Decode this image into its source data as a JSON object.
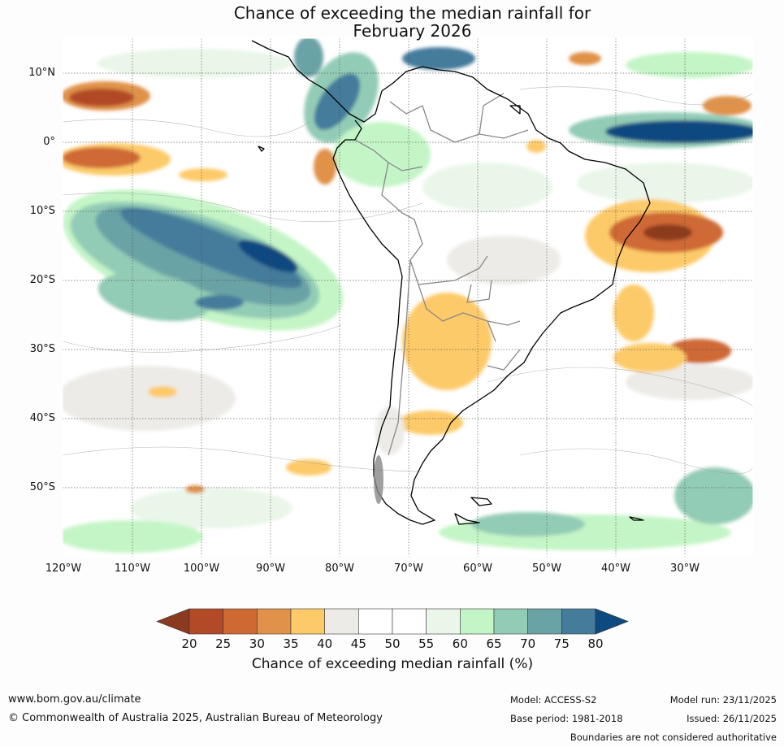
{
  "title": {
    "line1": "Chance of exceeding the median rainfall for",
    "line2": "February 2026"
  },
  "map": {
    "lat_labels": [
      "10°N",
      "0°",
      "10°S",
      "20°S",
      "30°S",
      "40°S",
      "50°S"
    ],
    "lon_labels": [
      "120°W",
      "110°W",
      "100°W",
      "90°W",
      "80°W",
      "70°W",
      "60°W",
      "50°W",
      "40°W",
      "30°W"
    ],
    "ocean_color": "#ffffff",
    "border_color": "#888888",
    "coast_color": "#000000"
  },
  "colorbar": {
    "title": "Chance of exceeding median rainfall (%)",
    "ticks": [
      "20",
      "25",
      "30",
      "35",
      "40",
      "45",
      "50",
      "55",
      "60",
      "65",
      "70",
      "75",
      "80"
    ],
    "colors": [
      "#8c3a1f",
      "#b24a28",
      "#cf6934",
      "#e0924a",
      "#fdca69",
      "#ecebe7",
      "#ffffff",
      "#ffffff",
      "#eaf6ea",
      "#c4f5c6",
      "#93ccb6",
      "#6aa3a6",
      "#457b9b",
      "#0d4a80"
    ]
  },
  "footer": {
    "website": "www.bom.gov.au/climate",
    "copyright": "© Commonwealth of Australia 2025, Australian Bureau of Meteorology",
    "model": "Model: ACCESS-S2",
    "model_run": "Model run: 23/11/2025",
    "base_period": "Base period: 1981-2018",
    "issued": "Issued: 26/11/2025",
    "disclaimer": "Boundaries are not considered authoritative"
  }
}
